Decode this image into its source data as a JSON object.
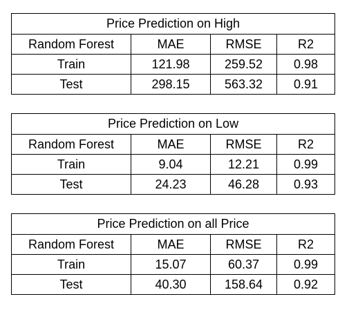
{
  "tables": [
    {
      "title": "Price Prediction on High",
      "headers": [
        "Random Forest",
        "MAE",
        "RMSE",
        "R2"
      ],
      "rows": [
        [
          "Train",
          "121.98",
          "259.52",
          "0.98"
        ],
        [
          "Test",
          "298.15",
          "563.32",
          "0.91"
        ]
      ]
    },
    {
      "title": "Price Prediction on Low",
      "headers": [
        "Random Forest",
        "MAE",
        "RMSE",
        "R2"
      ],
      "rows": [
        [
          "Train",
          "9.04",
          "12.21",
          "0.99"
        ],
        [
          "Test",
          "24.23",
          "46.28",
          "0.93"
        ]
      ]
    },
    {
      "title": "Price Prediction on all Price",
      "headers": [
        "Random Forest",
        "MAE",
        "RMSE",
        "R2"
      ],
      "rows": [
        [
          "Train",
          "15.07",
          "60.37",
          "0.99"
        ],
        [
          "Test",
          "40.30",
          "158.64",
          "0.92"
        ]
      ]
    }
  ]
}
